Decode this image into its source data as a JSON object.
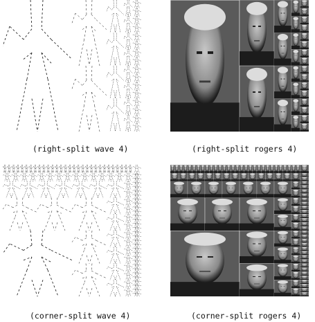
{
  "panels": [
    {
      "caption": "(right-split wave 4)",
      "kind": "wave",
      "split": "right",
      "n": 4
    },
    {
      "caption": "(right-split rogers 4)",
      "kind": "rogers",
      "split": "right",
      "n": 4
    },
    {
      "caption": "(corner-split wave 4)",
      "kind": "wave",
      "split": "corner",
      "n": 4
    },
    {
      "caption": "(corner-split rogers 4)",
      "kind": "rogers",
      "split": "corner",
      "n": 4
    }
  ],
  "colors": {
    "ink": "#111111",
    "photo_bg": "#5a5a5a",
    "photo_dark": "#1c1c1c",
    "face": "#c8c8c8"
  }
}
